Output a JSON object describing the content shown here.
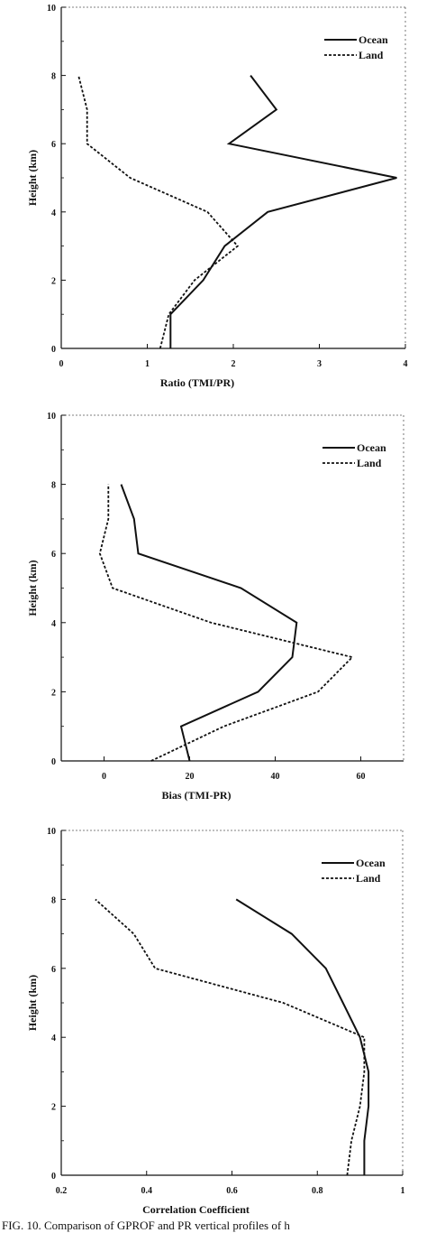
{
  "chart_data": [
    {
      "type": "line",
      "xlabel": "Ratio (TMI/PR)",
      "ylabel": "Height (km)",
      "xlim": [
        0,
        4
      ],
      "ylim": [
        0,
        10
      ],
      "xticks": [
        "0",
        "1",
        "2",
        "3",
        "4"
      ],
      "yticks": [
        "0",
        "2",
        "4",
        "6",
        "8",
        "10"
      ],
      "legend": "top-right",
      "series": [
        {
          "name": "Ocean",
          "style": "solid",
          "x": [
            1.27,
            1.27,
            1.65,
            1.9,
            2.4,
            3.9,
            1.95,
            2.5,
            2.2
          ],
          "y": [
            0,
            1,
            2,
            3,
            4,
            5,
            6,
            7,
            8
          ]
        },
        {
          "name": "Land",
          "style": "dotted",
          "x": [
            1.15,
            1.25,
            1.55,
            2.05,
            1.7,
            0.8,
            0.3,
            0.3,
            0.2
          ],
          "y": [
            0,
            1,
            2,
            3,
            4,
            5,
            6,
            7,
            8
          ]
        }
      ]
    },
    {
      "type": "line",
      "xlabel": "Bias (TMI-PR)",
      "ylabel": "Height (km)",
      "xlim": [
        -10,
        70
      ],
      "ylim": [
        0,
        10
      ],
      "xticks": [
        "0",
        "20",
        "40",
        "60"
      ],
      "yticks": [
        "0",
        "2",
        "4",
        "6",
        "8",
        "10"
      ],
      "legend": "top-right",
      "series": [
        {
          "name": "Ocean",
          "style": "solid",
          "x": [
            20,
            18,
            36,
            44,
            45,
            32,
            8,
            7,
            4
          ],
          "y": [
            0,
            1,
            2,
            3,
            4,
            5,
            6,
            7,
            8
          ]
        },
        {
          "name": "Land",
          "style": "dotted",
          "x": [
            11,
            28,
            50,
            58,
            25,
            2,
            -1,
            1,
            1
          ],
          "y": [
            0,
            1,
            2,
            3,
            4,
            5,
            6,
            7,
            8
          ]
        }
      ]
    },
    {
      "type": "line",
      "xlabel": "Correlation Coefficient",
      "ylabel": "Height (km)",
      "xlim": [
        0.2,
        1
      ],
      "ylim": [
        0,
        10
      ],
      "xticks": [
        "0.2",
        "0.4",
        "0.6",
        "0.8",
        "1"
      ],
      "yticks": [
        "0",
        "2",
        "4",
        "6",
        "8",
        "10"
      ],
      "legend": "top-right",
      "series": [
        {
          "name": "Ocean",
          "style": "solid",
          "x": [
            0.91,
            0.91,
            0.92,
            0.92,
            0.9,
            0.86,
            0.82,
            0.74,
            0.61
          ],
          "y": [
            0,
            1,
            2,
            3,
            4,
            5,
            6,
            7,
            8
          ]
        },
        {
          "name": "Land",
          "style": "dotted",
          "x": [
            0.87,
            0.88,
            0.9,
            0.91,
            0.91,
            0.72,
            0.42,
            0.37,
            0.28
          ],
          "y": [
            0,
            1,
            2,
            3,
            4,
            5,
            6,
            7,
            8
          ]
        }
      ]
    }
  ],
  "caption": "FIG. 10. Comparison of GPROF and PR vertical profiles of h"
}
